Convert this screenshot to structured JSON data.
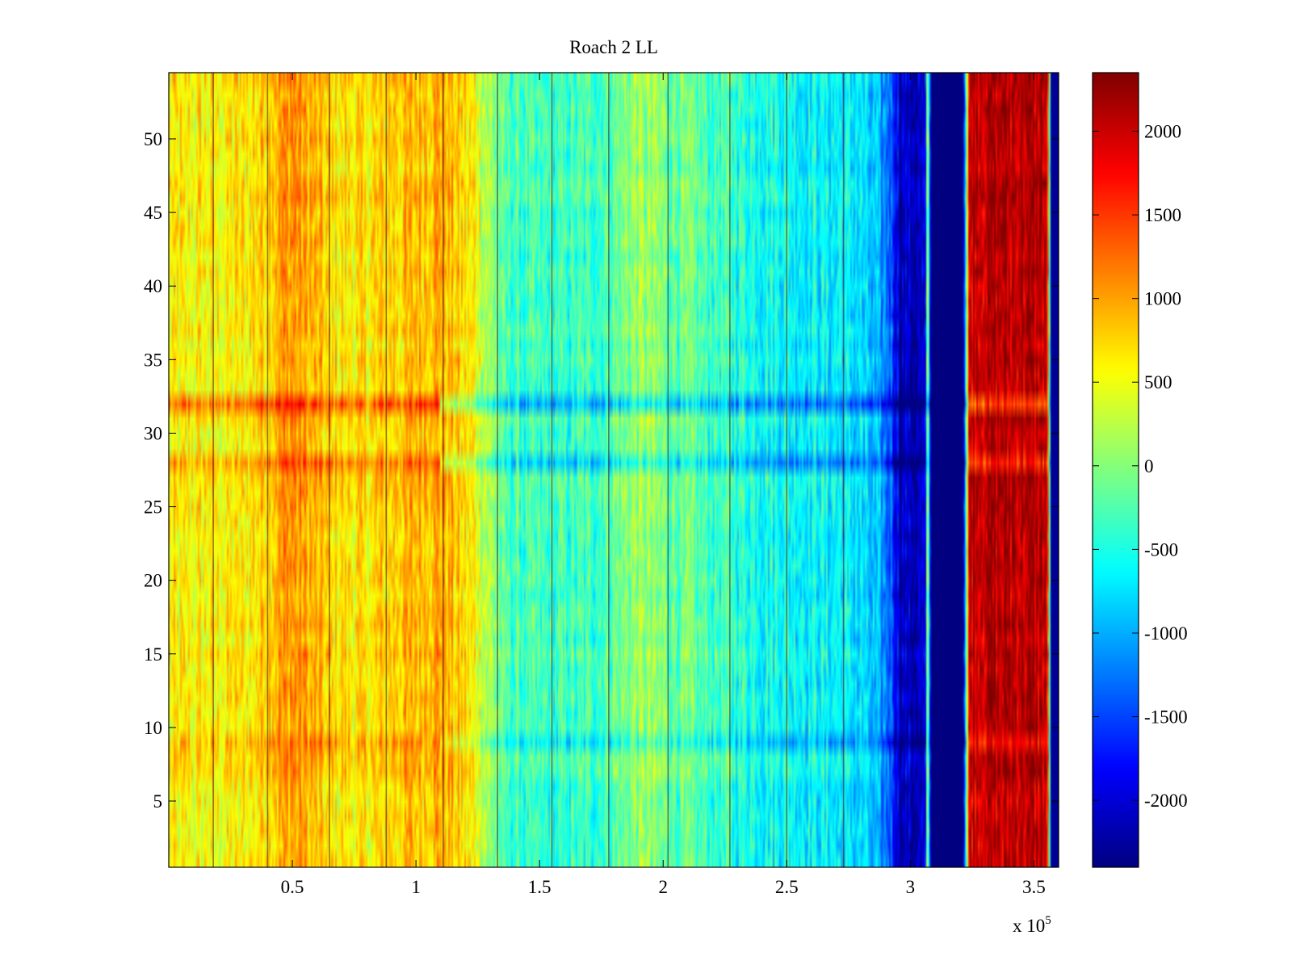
{
  "chart_data": {
    "type": "heatmap",
    "title": "Roach 2 LL",
    "xlabel": "",
    "ylabel": "",
    "x_range": [
      0,
      360000
    ],
    "y_range": [
      0.5,
      54.5
    ],
    "rows": 54,
    "x_ticks": [
      {
        "value": 50000,
        "label": "0.5"
      },
      {
        "value": 100000,
        "label": "1"
      },
      {
        "value": 150000,
        "label": "1.5"
      },
      {
        "value": 200000,
        "label": "2"
      },
      {
        "value": 250000,
        "label": "2.5"
      },
      {
        "value": 300000,
        "label": "3"
      },
      {
        "value": 350000,
        "label": "3.5"
      }
    ],
    "x_exponent": {
      "base": "x 10",
      "power": "5"
    },
    "y_ticks": [
      {
        "value": 5,
        "label": "5"
      },
      {
        "value": 10,
        "label": "10"
      },
      {
        "value": 15,
        "label": "15"
      },
      {
        "value": 20,
        "label": "20"
      },
      {
        "value": 25,
        "label": "25"
      },
      {
        "value": 30,
        "label": "30"
      },
      {
        "value": 35,
        "label": "35"
      },
      {
        "value": 40,
        "label": "40"
      },
      {
        "value": 45,
        "label": "45"
      },
      {
        "value": 50,
        "label": "50"
      }
    ],
    "colorbar": {
      "range": [
        -2400,
        2350
      ],
      "colormap": "jet",
      "ticks": [
        {
          "value": 2000,
          "label": "2000"
        },
        {
          "value": 1500,
          "label": "1500"
        },
        {
          "value": 1000,
          "label": "1000"
        },
        {
          "value": 500,
          "label": "500"
        },
        {
          "value": 0,
          "label": "0"
        },
        {
          "value": -500,
          "label": "-500"
        },
        {
          "value": -1000,
          "label": "-1000"
        },
        {
          "value": -1500,
          "label": "-1500"
        },
        {
          "value": -2000,
          "label": "-2000"
        }
      ]
    },
    "column_profile": [
      {
        "x": 0,
        "value": 550
      },
      {
        "x": 30000,
        "value": 600
      },
      {
        "x": 50000,
        "value": 1100
      },
      {
        "x": 65000,
        "value": 700
      },
      {
        "x": 80000,
        "value": 650
      },
      {
        "x": 100000,
        "value": 900
      },
      {
        "x": 110000,
        "value": 1000
      },
      {
        "x": 125000,
        "value": 500
      },
      {
        "x": 135000,
        "value": -250
      },
      {
        "x": 150000,
        "value": -400
      },
      {
        "x": 175000,
        "value": -300
      },
      {
        "x": 190000,
        "value": 100
      },
      {
        "x": 210000,
        "value": -200
      },
      {
        "x": 240000,
        "value": -500
      },
      {
        "x": 260000,
        "value": -600
      },
      {
        "x": 280000,
        "value": -750
      },
      {
        "x": 292000,
        "value": -1300
      },
      {
        "x": 296000,
        "value": -2100
      },
      {
        "x": 306000,
        "value": -2100
      },
      {
        "x": 307000,
        "value": 300
      },
      {
        "x": 308500,
        "value": -2400
      },
      {
        "x": 321000,
        "value": -2400
      },
      {
        "x": 322000,
        "value": -1400
      },
      {
        "x": 324000,
        "value": 2100
      },
      {
        "x": 355000,
        "value": 2100
      },
      {
        "x": 356000,
        "value": 800
      },
      {
        "x": 357000,
        "value": -2300
      },
      {
        "x": 360000,
        "value": -2300
      }
    ],
    "row_offsets": [
      {
        "row": 32,
        "offset": -700,
        "note": "horizontal stripe, reddish at left, dark blue at right"
      },
      {
        "row": 28,
        "offset": -500,
        "note": "horizontal stripe"
      },
      {
        "row": 9,
        "offset": -300,
        "note": "horizontal stripe"
      }
    ],
    "vertical_lines_x": [
      18000,
      40000,
      65000,
      88000,
      111000,
      133000,
      155000,
      178000,
      202000,
      227000,
      250000,
      273000
    ]
  }
}
